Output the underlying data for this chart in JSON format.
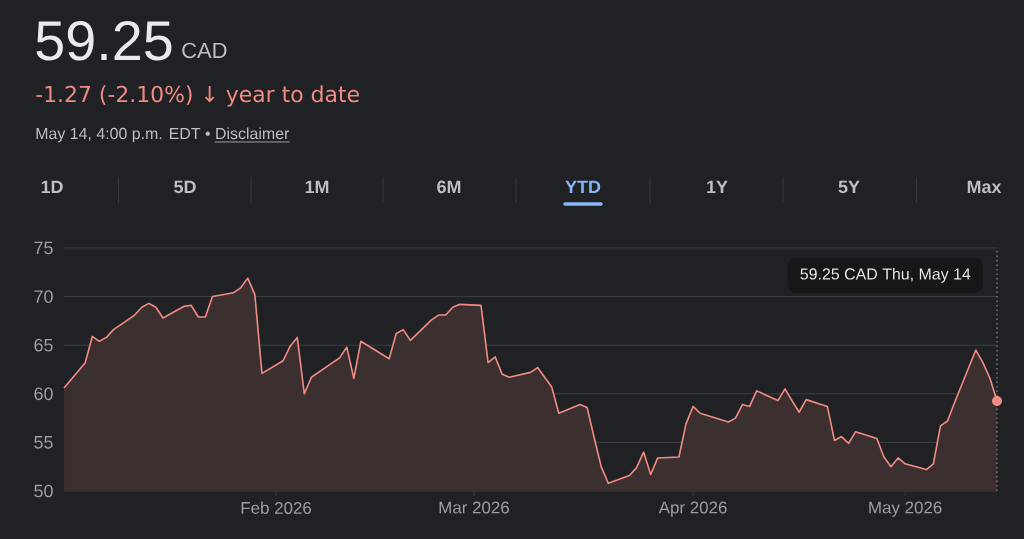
{
  "chart_data": {
    "type": "area",
    "title": "59.25",
    "subtitle": "-1.27 (-2.10%) ↓ year to date",
    "annotations": [
      "CAD",
      "May 14, 4:00 p.m. EDT •",
      "Disclaimer",
      "1D",
      "5D",
      "1M",
      "6M",
      "YTD",
      "1Y",
      "5Y",
      "Max",
      "59.25 CAD  Thu, May 14"
    ],
    "x": [
      "2026-01-02",
      "2026-01-05",
      "2026-01-06",
      "2026-01-07",
      "2026-01-08",
      "2026-01-09",
      "2026-01-12",
      "2026-01-13",
      "2026-01-14",
      "2026-01-15",
      "2026-01-16",
      "2026-01-19",
      "2026-01-20",
      "2026-01-21",
      "2026-01-22",
      "2026-01-23",
      "2026-01-26",
      "2026-01-27",
      "2026-01-28",
      "2026-01-29",
      "2026-01-30",
      "2026-02-02",
      "2026-02-03",
      "2026-02-04",
      "2026-02-05",
      "2026-02-06",
      "2026-02-09",
      "2026-02-10",
      "2026-02-11",
      "2026-02-12",
      "2026-02-13",
      "2026-02-17",
      "2026-02-18",
      "2026-02-19",
      "2026-02-20",
      "2026-02-23",
      "2026-02-24",
      "2026-02-25",
      "2026-02-26",
      "2026-02-27",
      "2026-03-02",
      "2026-03-03",
      "2026-03-04",
      "2026-03-05",
      "2026-03-06",
      "2026-03-09",
      "2026-03-10",
      "2026-03-11",
      "2026-03-12",
      "2026-03-13",
      "2026-03-16",
      "2026-03-17",
      "2026-03-18",
      "2026-03-19",
      "2026-03-20",
      "2026-03-23",
      "2026-03-24",
      "2026-03-25",
      "2026-03-26",
      "2026-03-27",
      "2026-03-30",
      "2026-03-31",
      "2026-04-01",
      "2026-04-02",
      "2026-04-06",
      "2026-04-07",
      "2026-04-08",
      "2026-04-09",
      "2026-04-10",
      "2026-04-13",
      "2026-04-14",
      "2026-04-15",
      "2026-04-16",
      "2026-04-17",
      "2026-04-20",
      "2026-04-21",
      "2026-04-22",
      "2026-04-23",
      "2026-04-24",
      "2026-04-27",
      "2026-04-28",
      "2026-04-29",
      "2026-04-30",
      "2026-05-01",
      "2026-05-04",
      "2026-05-05",
      "2026-05-06",
      "2026-05-07",
      "2026-05-08",
      "2026-05-11",
      "2026-05-12",
      "2026-05-13",
      "2026-05-14"
    ],
    "series": [
      {
        "color": "#f28b82",
        "values": [
          60.6,
          63.2,
          65.9,
          65.4,
          65.8,
          66.6,
          68.1,
          68.9,
          69.3,
          68.9,
          67.8,
          69.0,
          69.1,
          67.9,
          67.9,
          70.0,
          70.4,
          70.9,
          71.9,
          70.2,
          62.1,
          63.4,
          64.9,
          65.8,
          60.0,
          61.7,
          63.2,
          63.7,
          64.8,
          61.6,
          65.4,
          63.6,
          66.2,
          66.6,
          65.5,
          67.6,
          68.1,
          68.1,
          68.9,
          69.2,
          69.1,
          63.2,
          63.8,
          62.0,
          61.7,
          62.2,
          62.7,
          61.7,
          60.7,
          58.0,
          58.9,
          58.6,
          55.5,
          52.5,
          50.8,
          51.6,
          52.4,
          54.0,
          51.7,
          53.4,
          53.5,
          56.9,
          58.7,
          58.0,
          57.1,
          57.5,
          58.9,
          58.7,
          60.3,
          59.3,
          60.5,
          59.3,
          58.1,
          59.4,
          58.7,
          55.2,
          55.6,
          54.9,
          56.1,
          55.4,
          53.5,
          52.5,
          53.4,
          52.8,
          52.2,
          52.8,
          56.7,
          57.2,
          59.1,
          64.5,
          63.2,
          61.6,
          59.25
        ]
      }
    ],
    "xlim": [
      "2026-01-02",
      "2026-05-14"
    ],
    "xticks": [
      {
        "value": "2026-02-01",
        "label": "Feb 2026"
      },
      {
        "value": "2026-03-01",
        "label": "Mar 2026"
      },
      {
        "value": "2026-04-01",
        "label": "Apr 2026"
      },
      {
        "value": "2026-05-01",
        "label": "May 2026"
      }
    ],
    "ylim": [
      50,
      75
    ],
    "yticks": [
      50,
      55,
      60,
      65,
      70,
      75
    ],
    "grid": "y",
    "ref_lines": [
      {
        "axis": "x",
        "value": "2026-05-14",
        "color": "#9aa0a6",
        "line_style": "dotted"
      }
    ]
  }
}
